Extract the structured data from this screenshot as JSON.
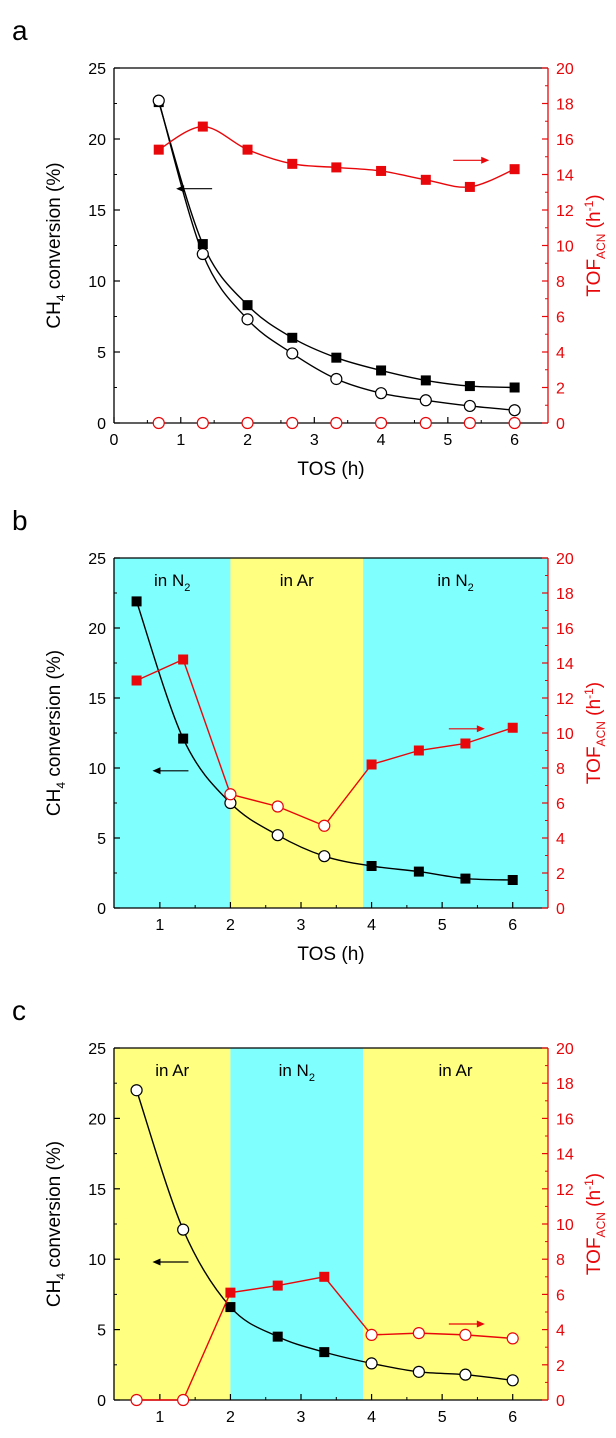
{
  "colors": {
    "black": "#000000",
    "red": "#e8070a",
    "cyan": "#80ffff",
    "yellow": "#ffff80"
  },
  "chart_data": [
    {
      "panel_label": "a",
      "type": "line",
      "xlabel": "TOS (h)",
      "ylabel_left": {
        "main": "CH",
        "sub": "4",
        "rest": " conversion (%)"
      },
      "ylabel_right": {
        "main": "TOF",
        "sub": "ACN",
        "rest": " (h",
        "sup": "-1",
        "end": ")"
      },
      "xlim": [
        0,
        6.5
      ],
      "ylim_left": [
        0,
        25
      ],
      "ylim_right": [
        0,
        20
      ],
      "xticks": [
        "0",
        "1",
        "2",
        "3",
        "4",
        "5",
        "6"
      ],
      "yticks_left": [
        "0",
        "5",
        "10",
        "15",
        "20",
        "25"
      ],
      "yticks_right": [
        "0",
        "2",
        "4",
        "6",
        "8",
        "10",
        "12",
        "14",
        "16",
        "18",
        "20"
      ],
      "regions": [],
      "series": [
        {
          "axis": "left",
          "marker": "square-filled",
          "color": "#000000",
          "smooth": true,
          "x": [
            0.67,
            1.33,
            2.0,
            2.67,
            3.33,
            4.0,
            4.67,
            5.33,
            6.0
          ],
          "y": [
            22.6,
            12.6,
            8.3,
            6.0,
            4.6,
            3.7,
            3.0,
            2.6,
            2.5
          ]
        },
        {
          "axis": "left",
          "marker": "circle-open",
          "color": "#000000",
          "smooth": true,
          "x": [
            0.67,
            1.33,
            2.0,
            2.67,
            3.33,
            4.0,
            4.67,
            5.33,
            6.0
          ],
          "y": [
            22.7,
            11.9,
            7.3,
            4.9,
            3.1,
            2.1,
            1.6,
            1.2,
            0.9
          ]
        },
        {
          "axis": "right",
          "marker": "square-filled",
          "color": "#e8070a",
          "smooth": true,
          "x": [
            0.67,
            1.33,
            2.0,
            2.67,
            3.33,
            4.0,
            4.67,
            5.33,
            6.0
          ],
          "y": [
            15.4,
            16.7,
            15.4,
            14.6,
            14.4,
            14.2,
            13.7,
            13.3,
            14.3
          ]
        },
        {
          "axis": "right",
          "marker": "circle-open",
          "color": "#e8070a",
          "smooth": false,
          "no_line": true,
          "x": [
            0.67,
            1.33,
            2.0,
            2.67,
            3.33,
            4.0,
            4.67,
            5.33,
            6.0
          ],
          "y": [
            0,
            0,
            0,
            0,
            0,
            0,
            0,
            0,
            0
          ]
        }
      ],
      "arrows": [
        {
          "direction": "left",
          "color": "#000000",
          "x": 1.2,
          "y": 16.5
        },
        {
          "direction": "right",
          "color": "#e8070a",
          "x": 5.35,
          "y": 18.5
        }
      ]
    },
    {
      "panel_label": "b",
      "type": "line",
      "xlabel": "TOS (h)",
      "ylabel_left": {
        "main": "CH",
        "sub": "4",
        "rest": " conversion (%)"
      },
      "ylabel_right": {
        "main": "TOF",
        "sub": "ACN",
        "rest": " (h",
        "sup": "-1",
        "end": ")"
      },
      "xlim": [
        0.35,
        6.5
      ],
      "ylim_left": [
        0,
        25
      ],
      "ylim_right": [
        0,
        20
      ],
      "xticks": [
        "1",
        "2",
        "3",
        "4",
        "5",
        "6"
      ],
      "yticks_left": [
        "0",
        "5",
        "10",
        "15",
        "20",
        "25"
      ],
      "yticks_right": [
        "0",
        "2",
        "4",
        "6",
        "8",
        "10",
        "12",
        "14",
        "16",
        "18",
        "20"
      ],
      "regions": [
        {
          "from": 0.35,
          "to": 2.0,
          "color": "#80ffff",
          "label": {
            "main": "in N",
            "sub": "2"
          }
        },
        {
          "from": 2.0,
          "to": 3.88,
          "color": "#ffff80",
          "label": {
            "main": "in Ar",
            "sub": ""
          }
        },
        {
          "from": 3.88,
          "to": 6.5,
          "color": "#80ffff",
          "label": {
            "main": "in N",
            "sub": "2"
          }
        }
      ],
      "series": [
        {
          "axis": "left",
          "marker": "mixed",
          "color": "#000000",
          "smooth": true,
          "x": [
            0.67,
            1.33,
            2.0,
            2.67,
            3.33,
            4.0,
            4.67,
            5.33,
            6.0
          ],
          "y": [
            21.9,
            12.1,
            7.5,
            5.2,
            3.7,
            3.0,
            2.6,
            2.1,
            2.0
          ],
          "markers": [
            "s",
            "s",
            "o",
            "o",
            "o",
            "s",
            "s",
            "s",
            "s"
          ]
        },
        {
          "axis": "right",
          "marker": "mixed",
          "color": "#e8070a",
          "smooth": false,
          "x": [
            0.67,
            1.33,
            2.0,
            2.67,
            3.33,
            4.0,
            4.67,
            5.33,
            6.0
          ],
          "y": [
            13.0,
            14.2,
            6.5,
            5.8,
            4.7,
            8.2,
            9.0,
            9.4,
            10.3
          ],
          "markers": [
            "s",
            "s",
            "o",
            "o",
            "o",
            "s",
            "s",
            "s",
            "s"
          ]
        }
      ],
      "arrows": [
        {
          "direction": "left",
          "color": "#000000",
          "x": 1.15,
          "y": 9.8
        },
        {
          "direction": "right",
          "color": "#e8070a",
          "x": 5.35,
          "y": 12.8
        }
      ]
    },
    {
      "panel_label": "c",
      "type": "line",
      "xlabel": "TOS (h)",
      "ylabel_left": {
        "main": "CH",
        "sub": "4",
        "rest": " conversion (%)"
      },
      "ylabel_right": {
        "main": "TOF",
        "sub": "ACN",
        "rest": " (h",
        "sup": "-1",
        "end": ")"
      },
      "xlim": [
        0.35,
        6.5
      ],
      "ylim_left": [
        0,
        25
      ],
      "ylim_right": [
        0,
        20
      ],
      "xticks": [
        "1",
        "2",
        "3",
        "4",
        "5",
        "6"
      ],
      "yticks_left": [
        "0",
        "5",
        "10",
        "15",
        "20",
        "25"
      ],
      "yticks_right": [
        "0",
        "2",
        "4",
        "6",
        "8",
        "10",
        "12",
        "14",
        "16",
        "18",
        "20"
      ],
      "regions": [
        {
          "from": 0.35,
          "to": 2.0,
          "color": "#ffff80",
          "label": {
            "main": "in Ar",
            "sub": ""
          }
        },
        {
          "from": 2.0,
          "to": 3.88,
          "color": "#80ffff",
          "label": {
            "main": "in N",
            "sub": "2"
          }
        },
        {
          "from": 3.88,
          "to": 6.5,
          "color": "#ffff80",
          "label": {
            "main": "in Ar",
            "sub": ""
          }
        }
      ],
      "series": [
        {
          "axis": "left",
          "marker": "mixed",
          "color": "#000000",
          "smooth": true,
          "x": [
            0.67,
            1.33,
            2.0,
            2.67,
            3.33,
            4.0,
            4.67,
            5.33,
            6.0
          ],
          "y": [
            22.0,
            12.1,
            6.6,
            4.5,
            3.4,
            2.6,
            2.0,
            1.8,
            1.4
          ],
          "markers": [
            "o",
            "o",
            "s",
            "s",
            "s",
            "o",
            "o",
            "o",
            "o"
          ]
        },
        {
          "axis": "right",
          "marker": "mixed",
          "color": "#e8070a",
          "smooth": false,
          "x": [
            0.67,
            1.33,
            2.0,
            2.67,
            3.33,
            4.0,
            4.67,
            5.33,
            6.0
          ],
          "y": [
            0.0,
            0.0,
            6.1,
            6.5,
            7.0,
            3.7,
            3.8,
            3.7,
            3.5
          ],
          "markers": [
            "o",
            "o",
            "s",
            "s",
            "s",
            "o",
            "o",
            "o",
            "o"
          ]
        }
      ],
      "arrows": [
        {
          "direction": "left",
          "color": "#000000",
          "x": 1.15,
          "y": 9.8
        },
        {
          "direction": "right",
          "color": "#e8070a",
          "x": 5.35,
          "y": 5.4
        }
      ]
    }
  ]
}
